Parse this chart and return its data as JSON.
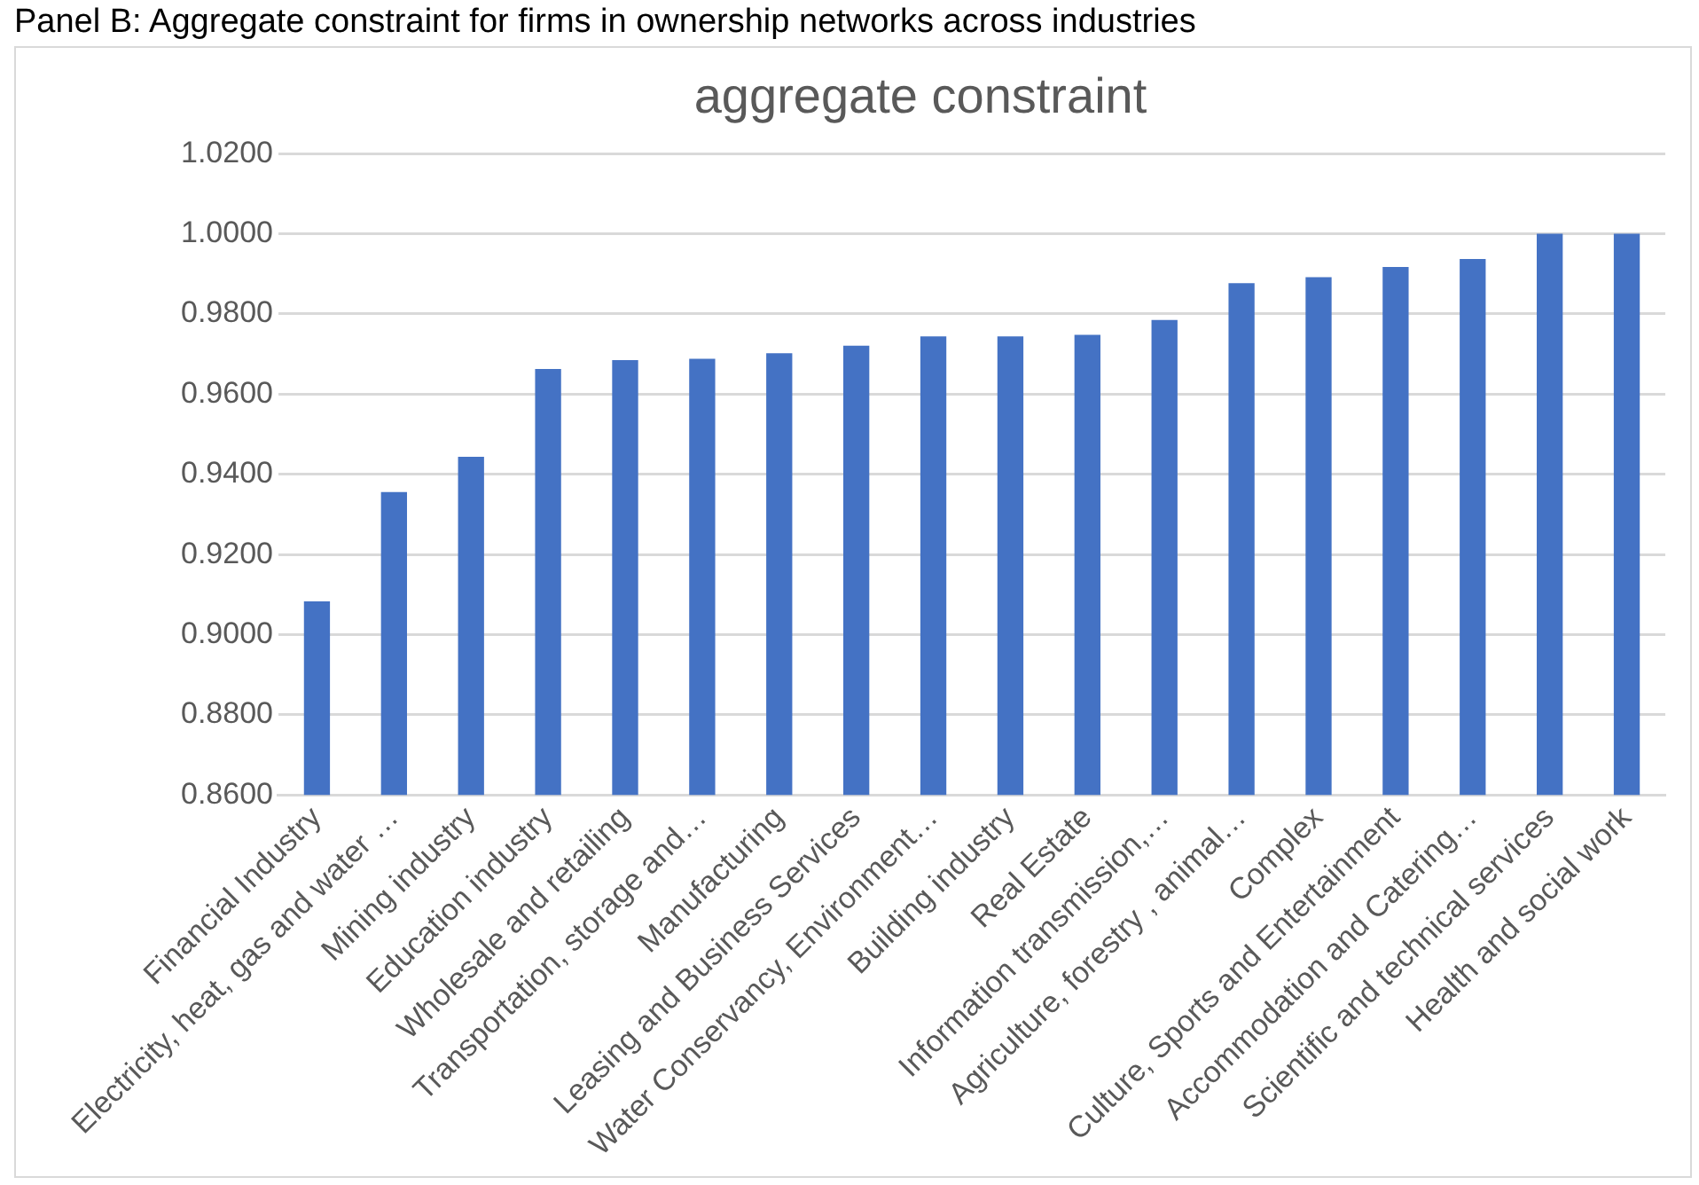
{
  "chart_data": {
    "type": "bar",
    "title": "aggregate constraint",
    "annotations": [
      "Panel B: Aggregate constraint for firms in ownership networks across industries"
    ],
    "categories": [
      "Financial Industry",
      "Electricity, heat, gas and water …",
      "Mining industry",
      "Education industry",
      "Wholesale and retailing",
      "Transportation, storage and…",
      "Manufacturing",
      "Leasing and Business Services",
      "Water Conservancy, Environment…",
      "Building industry",
      "Real Estate",
      "Information transmission,…",
      "Agriculture, forestry , animal…",
      "Complex",
      "Culture, Sports and Entertainment",
      "Accommodation and Catering…",
      "Scientific and technical services",
      "Health and social work"
    ],
    "values": [
      0.9083,
      0.9356,
      0.9444,
      0.9663,
      0.9685,
      0.9688,
      0.9702,
      0.9721,
      0.9744,
      0.9744,
      0.9748,
      0.9785,
      0.9877,
      0.9892,
      0.9917,
      0.9937,
      1.0,
      1.0
    ],
    "color": "#4472c4",
    "ylim": [
      0.86,
      1.02
    ],
    "yticks": [
      {
        "value": 0.86,
        "label": "0.8600"
      },
      {
        "value": 0.88,
        "label": "0.8800"
      },
      {
        "value": 0.9,
        "label": "0.9000"
      },
      {
        "value": 0.92,
        "label": "0.9200"
      },
      {
        "value": 0.94,
        "label": "0.9400"
      },
      {
        "value": 0.96,
        "label": "0.9600"
      },
      {
        "value": 0.98,
        "label": "0.9800"
      },
      {
        "value": 1.0,
        "label": "1.0000"
      },
      {
        "value": 1.02,
        "label": "1.0200"
      }
    ],
    "grid": "y",
    "legend": false
  }
}
